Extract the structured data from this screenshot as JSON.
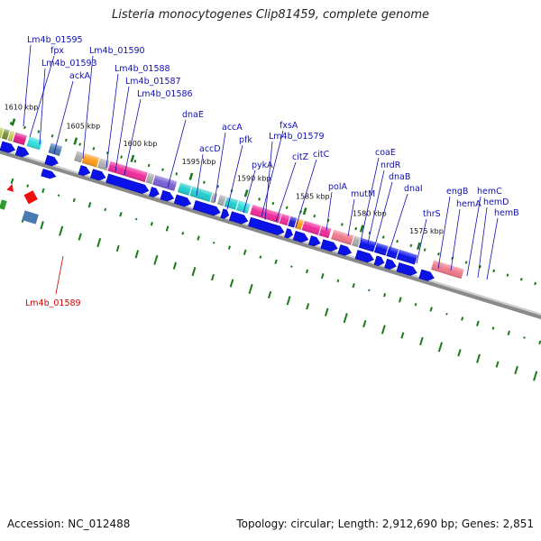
{
  "title": "Listeria monocytogenes Clip81459, complete genome",
  "footer": {
    "accession": "Accession: NC_012488",
    "summary": "Topology: circular; Length: 2,912,690 bp; Genes: 2,851"
  },
  "colors": {
    "gene_label": "#1010b0",
    "highlight_label": "#cc0000",
    "arrow": "#0a12e8",
    "highlight_arrow": "#ee1010",
    "tick": "#1a7a1a",
    "backbone": "#8a8a8a"
  },
  "kbp_marks": [
    "1610 kbp",
    "1605 kbp",
    "1600 kbp",
    "1595 kbp",
    "1590 kbp",
    "1585 kbp",
    "1580 kbp",
    "1575 kbp"
  ],
  "gene_labels": [
    "Lm4b_01595",
    "fpx",
    "Lm4b_01593",
    "ackA",
    "Lm4b_01590",
    "Lm4b_01588",
    "Lm4b_01587",
    "Lm4b_01586",
    "dnaE",
    "accD",
    "accA",
    "pfk",
    "pykA",
    "fxsA",
    "Lm4b_01579",
    "citZ",
    "citC",
    "polA",
    "mutM",
    "coaE",
    "nrdR",
    "dnaB",
    "dnaI",
    "thrS",
    "engB",
    "hemA",
    "hemC",
    "hemD",
    "hemB"
  ],
  "highlight_label": "Lm4b_01589"
}
